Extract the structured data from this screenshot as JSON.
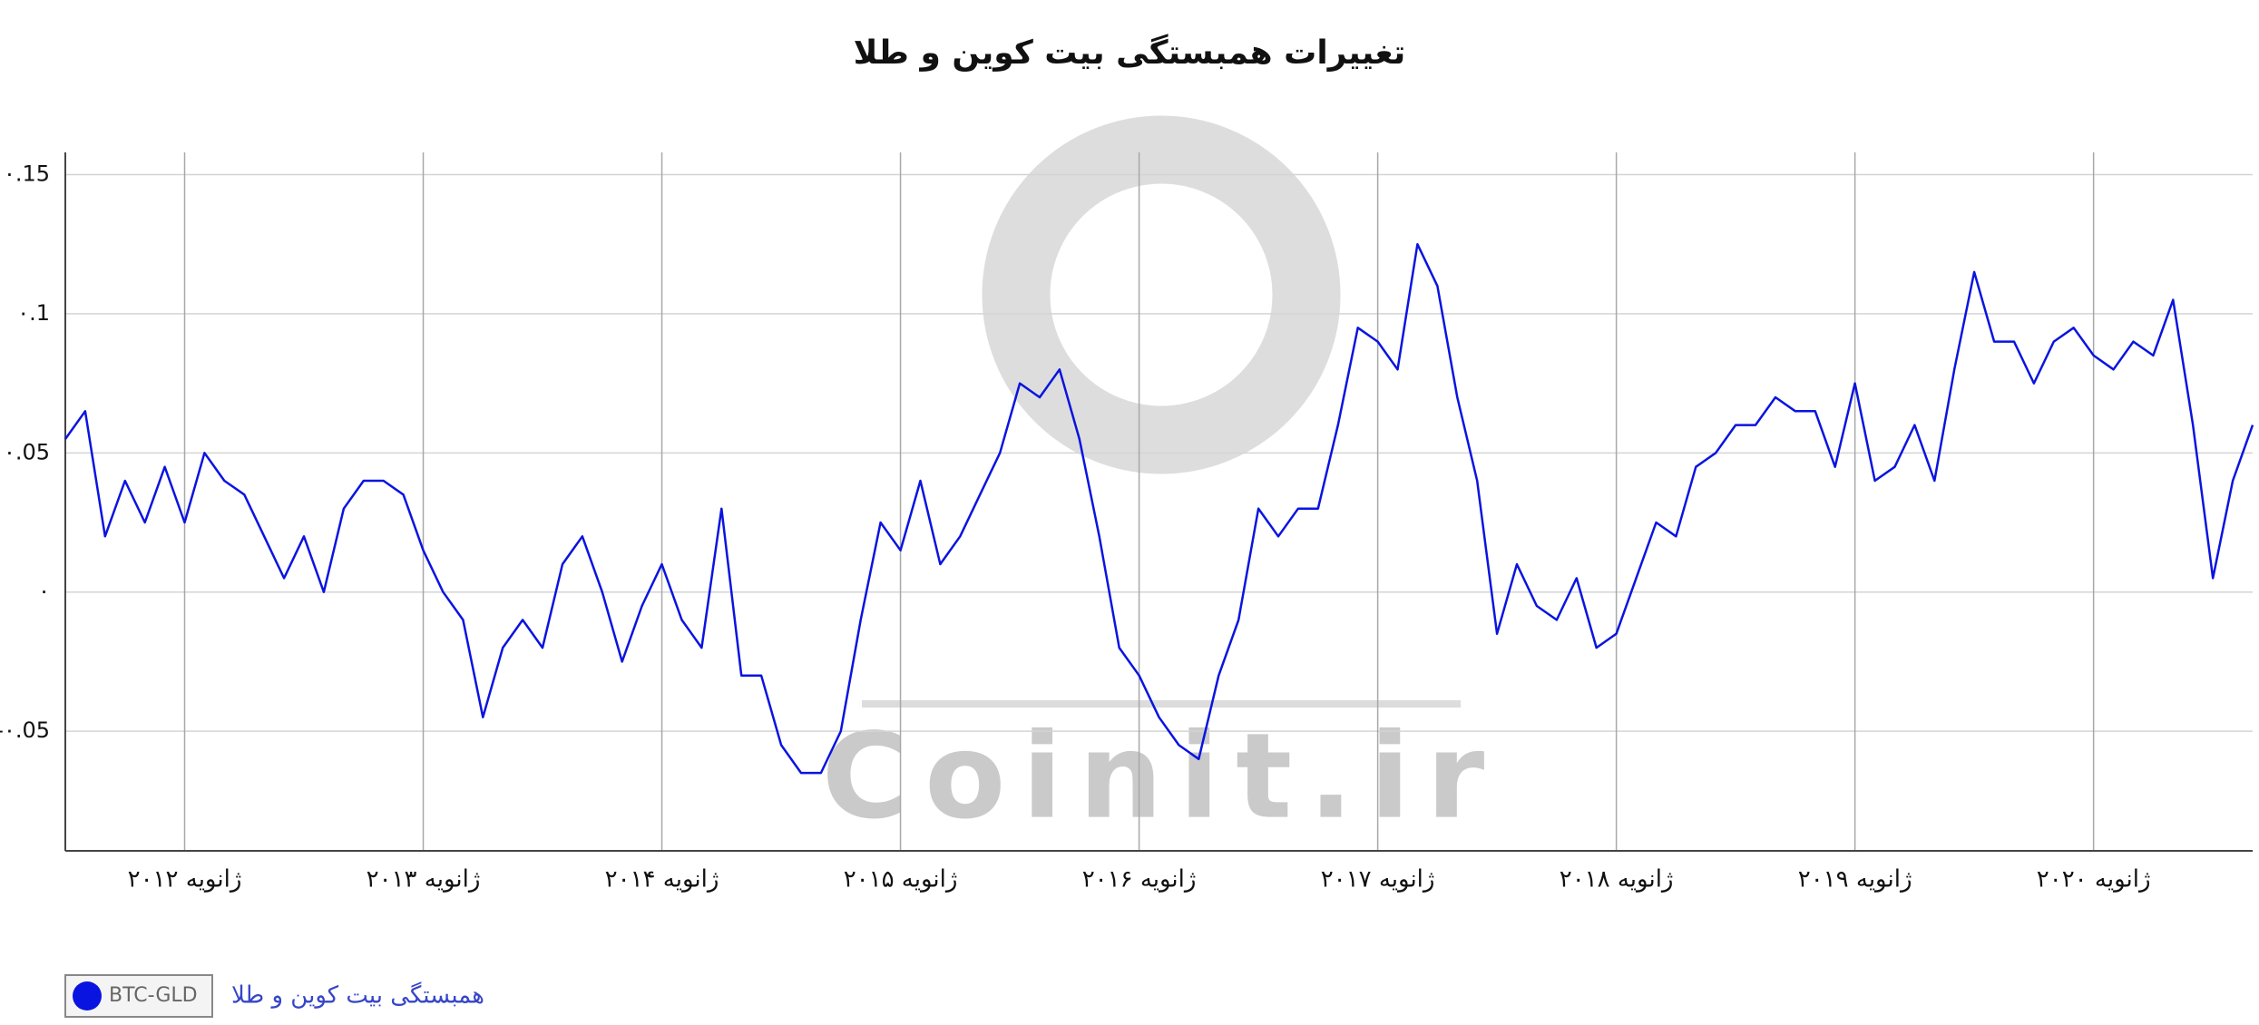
{
  "chart_data": {
    "type": "line",
    "title": "تغییرات همبستگی بیت کوین و طلا",
    "watermark": "Coinit.ir",
    "x": [
      "2011-07",
      "2011-08",
      "2011-09",
      "2011-10",
      "2011-11",
      "2011-12",
      "2012-01",
      "2012-02",
      "2012-03",
      "2012-04",
      "2012-05",
      "2012-06",
      "2012-07",
      "2012-08",
      "2012-09",
      "2012-10",
      "2012-11",
      "2012-12",
      "2013-01",
      "2013-02",
      "2013-03",
      "2013-04",
      "2013-05",
      "2013-06",
      "2013-07",
      "2013-08",
      "2013-09",
      "2013-10",
      "2013-11",
      "2013-12",
      "2014-01",
      "2014-02",
      "2014-03",
      "2014-04",
      "2014-05",
      "2014-06",
      "2014-07",
      "2014-08",
      "2014-09",
      "2014-10",
      "2014-11",
      "2014-12",
      "2015-01",
      "2015-02",
      "2015-03",
      "2015-04",
      "2015-05",
      "2015-06",
      "2015-07",
      "2015-08",
      "2015-09",
      "2015-10",
      "2015-11",
      "2015-12",
      "2016-01",
      "2016-02",
      "2016-03",
      "2016-04",
      "2016-05",
      "2016-06",
      "2016-07",
      "2016-08",
      "2016-09",
      "2016-10",
      "2016-11",
      "2016-12",
      "2017-01",
      "2017-02",
      "2017-03",
      "2017-04",
      "2017-05",
      "2017-06",
      "2017-07",
      "2017-08",
      "2017-09",
      "2017-10",
      "2017-11",
      "2017-12",
      "2018-01",
      "2018-02",
      "2018-03",
      "2018-04",
      "2018-05",
      "2018-06",
      "2018-07",
      "2018-08",
      "2018-09",
      "2018-10",
      "2018-11",
      "2018-12",
      "2019-01",
      "2019-02",
      "2019-03",
      "2019-04",
      "2019-05",
      "2019-06",
      "2019-07",
      "2019-08",
      "2019-09",
      "2019-10",
      "2019-11",
      "2019-12",
      "2020-01",
      "2020-02",
      "2020-03",
      "2020-04",
      "2020-05",
      "2020-06",
      "2020-07",
      "2020-08",
      "2020-09"
    ],
    "series": [
      {
        "name": "همبستگی بیت کوین و طلا",
        "code": "BTC-GLD",
        "color": "#0a14e0",
        "values": [
          0.055,
          0.065,
          0.02,
          0.04,
          0.025,
          0.045,
          0.025,
          0.05,
          0.04,
          0.035,
          0.02,
          0.005,
          0.02,
          0.0,
          0.03,
          0.04,
          0.04,
          0.035,
          0.015,
          0.0,
          -0.01,
          -0.045,
          -0.02,
          -0.01,
          -0.02,
          0.01,
          0.02,
          0.0,
          -0.025,
          -0.005,
          0.01,
          -0.01,
          -0.02,
          0.03,
          -0.03,
          -0.03,
          -0.055,
          -0.065,
          -0.065,
          -0.05,
          -0.01,
          0.025,
          0.015,
          0.04,
          0.01,
          0.02,
          0.035,
          0.05,
          0.075,
          0.07,
          0.08,
          0.055,
          0.02,
          -0.02,
          -0.03,
          -0.045,
          -0.055,
          -0.06,
          -0.03,
          -0.01,
          0.03,
          0.02,
          0.03,
          0.03,
          0.06,
          0.095,
          0.09,
          0.08,
          0.125,
          0.11,
          0.07,
          0.04,
          -0.015,
          0.01,
          -0.005,
          -0.01,
          0.005,
          -0.02,
          -0.015,
          0.005,
          0.025,
          0.02,
          0.045,
          0.05,
          0.06,
          0.06,
          0.07,
          0.065,
          0.065,
          0.045,
          0.075,
          0.04,
          0.045,
          0.06,
          0.04,
          0.08,
          0.115,
          0.09,
          0.09,
          0.075,
          0.09,
          0.095,
          0.085,
          0.08,
          0.09,
          0.085,
          0.105,
          0.06,
          0.005,
          0.04,
          0.06
        ]
      }
    ],
    "xlim": [
      "2011-07",
      "2020-09"
    ],
    "xticks": [
      {
        "value": "2012-01",
        "label": "ژانویه ۲۰۱۲"
      },
      {
        "value": "2013-01",
        "label": "ژانویه ۲۰۱۳"
      },
      {
        "value": "2014-01",
        "label": "ژانویه ۲۰۱۴"
      },
      {
        "value": "2015-01",
        "label": "ژانویه ۲۰۱۵"
      },
      {
        "value": "2016-01",
        "label": "ژانویه ۲۰۱۶"
      },
      {
        "value": "2017-01",
        "label": "ژانویه ۲۰۱۷"
      },
      {
        "value": "2018-01",
        "label": "ژانویه ۲۰۱۸"
      },
      {
        "value": "2019-01",
        "label": "ژانویه ۲۰۱۹"
      },
      {
        "value": "2020-01",
        "label": "ژانویه ۲۰۲۰"
      }
    ],
    "ylim": [
      -0.093,
      0.158
    ],
    "yticks": [
      {
        "value": -0.05,
        "label": "-۰.05"
      },
      {
        "value": 0,
        "label": "۰"
      },
      {
        "value": 0.05,
        "label": "۰.05"
      },
      {
        "value": 0.1,
        "label": "۰.1"
      },
      {
        "value": 0.15,
        "label": "۰.15"
      }
    ],
    "grid": true
  }
}
